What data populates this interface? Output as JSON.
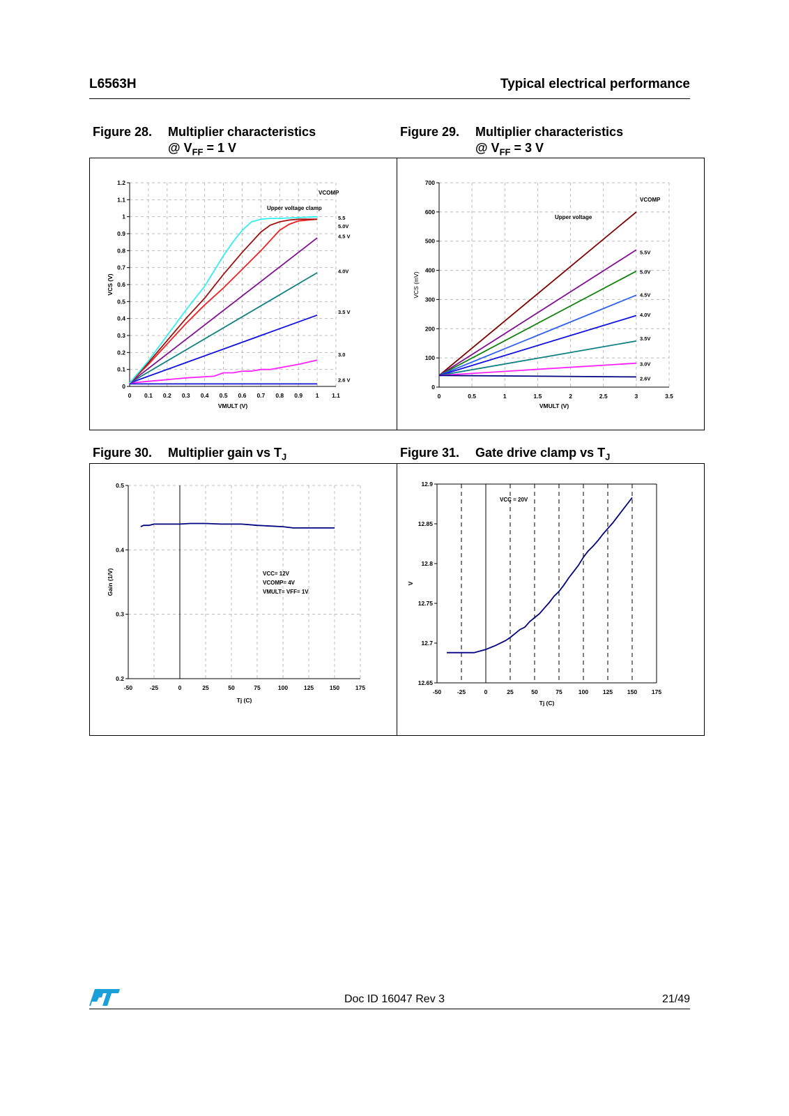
{
  "header": {
    "product": "L6563H",
    "section": "Typical electrical performance"
  },
  "figures": {
    "fig28": {
      "num": "Figure 28.",
      "title_l1": "Multiplier characteristics",
      "title_l2_prefix": "@ V",
      "title_l2_sub": "FF",
      "title_l2_suffix": " = 1 V"
    },
    "fig29": {
      "num": "Figure 29.",
      "title_l1": "Multiplier characteristics",
      "title_l2_prefix": "@ V",
      "title_l2_sub": "FF",
      "title_l2_suffix": " = 3 V"
    },
    "fig30": {
      "num": "Figure 30.",
      "title": "Multiplier gain vs T",
      "title_sub": "J"
    },
    "fig31": {
      "num": "Figure 31.",
      "title": "Gate drive clamp vs T",
      "title_sub": "J"
    }
  },
  "footer": {
    "doc_id": "Doc ID 16047 Rev 3",
    "page": "21/49"
  },
  "chart_data": [
    {
      "id": "fig28",
      "type": "line",
      "xlabel": "VMULT (V)",
      "ylabel": "VCS (V)",
      "xlim": [
        0,
        1.1
      ],
      "ylim": [
        0,
        1.2
      ],
      "xticks": [
        "0",
        "0.1",
        "0.2",
        "0.3",
        "0.4",
        "0.5",
        "0.6",
        "0.7",
        "0.8",
        "0.9",
        "1",
        "1.1"
      ],
      "yticks": [
        "0",
        "0.1",
        "0.2",
        "0.3",
        "0.4",
        "0.5",
        "0.6",
        "0.7",
        "0.8",
        "0.9",
        "1",
        "1.1",
        "1.2"
      ],
      "grid": true,
      "annotations": [
        {
          "text": "VCOMP",
          "x": 0.96,
          "y": 1.12
        },
        {
          "text": "Upper voltage clamp",
          "x": 0.82,
          "y": 1.03
        }
      ],
      "series": [
        {
          "name": "2.6 V",
          "color": "#1010d0",
          "x": [
            0,
            0.1,
            0.2,
            0.4,
            0.6,
            0.8,
            1.0
          ],
          "y": [
            0.015,
            0.015,
            0.015,
            0.015,
            0.015,
            0.015,
            0.015
          ]
        },
        {
          "name": "3.0",
          "color": "#ff20ff",
          "x": [
            0,
            0.1,
            0.2,
            0.3,
            0.45,
            0.5,
            0.55,
            0.6,
            0.65,
            0.7,
            0.75,
            0.8,
            0.9,
            1.0
          ],
          "y": [
            0.02,
            0.03,
            0.04,
            0.05,
            0.06,
            0.08,
            0.08,
            0.09,
            0.09,
            0.1,
            0.1,
            0.11,
            0.13,
            0.155
          ]
        },
        {
          "name": "3.5 V",
          "color": "#1010e0",
          "x": [
            0,
            1.0
          ],
          "y": [
            0.02,
            0.42
          ]
        },
        {
          "name": "4.0V",
          "color": "#108080",
          "x": [
            0,
            1.0
          ],
          "y": [
            0.02,
            0.67
          ]
        },
        {
          "name": "4.5 V",
          "color": "#801090",
          "x": [
            0,
            1.0
          ],
          "y": [
            0.02,
            0.875
          ]
        },
        {
          "name": "5.0V",
          "color": "#f02020",
          "x": [
            0,
            0.1,
            0.2,
            0.3,
            0.4,
            0.5,
            0.6,
            0.7,
            0.75,
            0.8,
            0.85,
            0.9,
            0.95,
            1.0
          ],
          "y": [
            0.02,
            0.13,
            0.25,
            0.37,
            0.48,
            0.58,
            0.69,
            0.8,
            0.86,
            0.92,
            0.955,
            0.975,
            0.98,
            0.985
          ]
        },
        {
          "name": "5.5",
          "color": "#a01010",
          "x": [
            0,
            0.1,
            0.2,
            0.3,
            0.4,
            0.5,
            0.6,
            0.7,
            0.75,
            0.8,
            0.85,
            0.9,
            0.95,
            1.0
          ],
          "y": [
            0.02,
            0.14,
            0.27,
            0.4,
            0.52,
            0.66,
            0.79,
            0.91,
            0.95,
            0.97,
            0.98,
            0.985,
            0.985,
            0.985
          ]
        },
        {
          "name": "Upper voltage clamp",
          "color": "#30f0f0",
          "x": [
            0,
            0.1,
            0.2,
            0.3,
            0.4,
            0.5,
            0.55,
            0.6,
            0.65,
            0.7,
            0.75,
            0.8,
            0.9,
            1.0
          ],
          "y": [
            0.02,
            0.15,
            0.3,
            0.45,
            0.59,
            0.77,
            0.85,
            0.92,
            0.97,
            0.985,
            0.99,
            0.99,
            0.995,
            1.0
          ]
        }
      ],
      "labels": [
        {
          "text": "5.5",
          "y": 0.995
        },
        {
          "text": "5.0V",
          "y": 0.945
        },
        {
          "text": "4.5 V",
          "y": 0.885
        },
        {
          "text": "4.0V",
          "y": 0.68
        },
        {
          "text": "3.5 V",
          "y": 0.44
        },
        {
          "text": "3.0",
          "y": 0.19
        },
        {
          "text": "2.6 V",
          "y": 0.04
        }
      ]
    },
    {
      "id": "fig29",
      "type": "line",
      "xlabel": "VMULT (V)",
      "ylabel": "VCS (mV)",
      "xlim": [
        0,
        3.5
      ],
      "ylim": [
        0,
        700
      ],
      "xticks": [
        "0",
        "0.5",
        "1",
        "1.5",
        "2",
        "2.5",
        "3",
        "3.5"
      ],
      "yticks": [
        "0",
        "100",
        "200",
        "300",
        "400",
        "500",
        "600",
        "700"
      ],
      "grid": true,
      "annotations": [
        {
          "text": "VCOMP",
          "x": 3.2,
          "y": 640
        },
        {
          "text": "Upper   voltage",
          "x": 1.9,
          "y": 585
        }
      ],
      "series": [
        {
          "name": "Upper voltage",
          "color": "#800000",
          "x": [
            0,
            3
          ],
          "y": [
            40,
            600
          ]
        },
        {
          "name": "5.5V",
          "color": "#801090",
          "x": [
            0,
            3
          ],
          "y": [
            40,
            470
          ]
        },
        {
          "name": "5.0V",
          "color": "#108010",
          "x": [
            0,
            3
          ],
          "y": [
            40,
            397
          ]
        },
        {
          "name": "4.5V",
          "color": "#3060f0",
          "x": [
            0,
            3
          ],
          "y": [
            40,
            315
          ]
        },
        {
          "name": "4.0V",
          "color": "#1010e0",
          "x": [
            0,
            3
          ],
          "y": [
            40,
            245
          ]
        },
        {
          "name": "3.5V",
          "color": "#108080",
          "x": [
            0,
            3
          ],
          "y": [
            40,
            158
          ]
        },
        {
          "name": "3.0V",
          "color": "#ff20ff",
          "x": [
            0,
            3
          ],
          "y": [
            40,
            82
          ]
        },
        {
          "name": "2.6V",
          "color": "#000080",
          "x": [
            0,
            3
          ],
          "y": [
            40,
            35
          ]
        }
      ],
      "labels": [
        {
          "text": "5.5V",
          "y": 462
        },
        {
          "text": "5.0V",
          "y": 395
        },
        {
          "text": "4.5V",
          "y": 316
        },
        {
          "text": "4.0V",
          "y": 248
        },
        {
          "text": "3.5V",
          "y": 167
        },
        {
          "text": "3.0V",
          "y": 80
        },
        {
          "text": "2.6V",
          "y": 30
        }
      ]
    },
    {
      "id": "fig30",
      "type": "line",
      "xlabel": "Tj (C)",
      "ylabel": "Gain (1/V)",
      "xlim": [
        -50,
        175
      ],
      "ylim": [
        0.2,
        0.5
      ],
      "xticks": [
        "-50",
        "-25",
        "0",
        "25",
        "50",
        "75",
        "100",
        "125",
        "150",
        "175"
      ],
      "yticks": [
        "0.2",
        "0.3",
        "0.4",
        "0.5"
      ],
      "grid": true,
      "annotations": [
        {
          "text": "VCC= 12V"
        },
        {
          "text": "VCOMP= 4V"
        },
        {
          "text": "VMULT= VFF= 1V"
        }
      ],
      "series": [
        {
          "name": "Gain",
          "color": "#000080",
          "x": [
            -38,
            -35,
            -30,
            -25,
            -20,
            -10,
            0,
            10,
            25,
            40,
            60,
            75,
            100,
            110,
            125,
            150
          ],
          "y": [
            0.436,
            0.438,
            0.438,
            0.44,
            0.44,
            0.44,
            0.44,
            0.441,
            0.441,
            0.44,
            0.44,
            0.438,
            0.436,
            0.434,
            0.434,
            0.434
          ]
        }
      ]
    },
    {
      "id": "fig31",
      "type": "line",
      "xlabel": "Tj (C)",
      "ylabel": "V",
      "xlim": [
        -50,
        175
      ],
      "ylim": [
        12.65,
        12.9
      ],
      "xticks": [
        "-50",
        "-25",
        "0",
        "25",
        "50",
        "75",
        "100",
        "125",
        "150",
        "175"
      ],
      "yticks": [
        "12.65",
        "12.7",
        "12.75",
        "12.8",
        "12.85",
        "12.9"
      ],
      "grid": true,
      "annotations": [
        {
          "text": "VCC = 20V"
        }
      ],
      "series": [
        {
          "name": "Clamp",
          "color": "#000080",
          "x": [
            -40,
            -25,
            -12,
            0,
            10,
            20,
            25,
            30,
            35,
            40,
            45,
            50,
            55,
            60,
            65,
            70,
            75,
            80,
            85,
            90,
            95,
            100,
            105,
            110,
            115,
            120,
            125,
            130,
            135,
            140,
            145,
            150
          ],
          "y": [
            12.688,
            12.688,
            12.688,
            12.692,
            12.697,
            12.703,
            12.707,
            12.712,
            12.717,
            12.72,
            12.727,
            12.732,
            12.737,
            12.744,
            12.751,
            12.759,
            12.765,
            12.773,
            12.782,
            12.79,
            12.798,
            12.808,
            12.816,
            12.822,
            12.829,
            12.837,
            12.844,
            12.851,
            12.859,
            12.867,
            12.875,
            12.883
          ]
        }
      ]
    }
  ]
}
